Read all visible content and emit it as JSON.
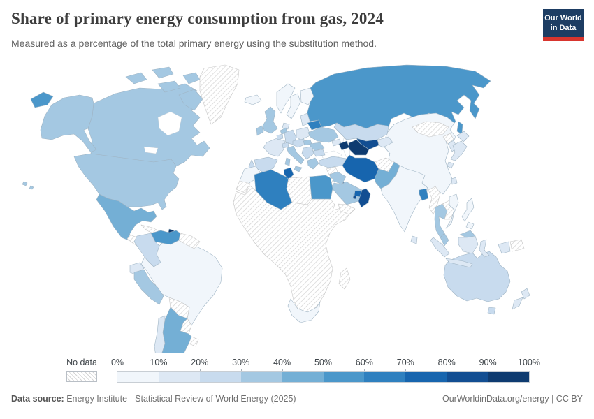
{
  "header": {
    "title": "Share of primary energy consumption from gas, 2024",
    "subtitle": "Measured as a percentage of the total primary energy using the substitution method.",
    "logo": {
      "line1": "Our World",
      "line2": "in Data",
      "bg_color": "#1d3d63",
      "accent_color": "#d8352e"
    }
  },
  "legend": {
    "no_data_label": "No data",
    "tick_labels": [
      "0%",
      "10%",
      "20%",
      "30%",
      "40%",
      "50%",
      "60%",
      "70%",
      "80%",
      "90%",
      "100%"
    ]
  },
  "footer": {
    "source_label": "Data source:",
    "source_text": " Energy Institute - Statistical Review of World Energy (2025)",
    "credit": "OurWorldinData.org/energy | CC BY"
  },
  "chart_data": {
    "type": "choropleth",
    "title": "Share of primary energy consumption from gas, 2024",
    "unit": "%",
    "bin_ranges": [
      "0-10%",
      "10-20%",
      "20-30%",
      "30-40%",
      "40-50%",
      "50-60%",
      "60-70%",
      "70-80%",
      "80-90%",
      "90-100%"
    ],
    "bin_colors": [
      "#f1f6fb",
      "#dde8f4",
      "#c8dbee",
      "#a4c8e2",
      "#74afd5",
      "#4b97ca",
      "#2f80bf",
      "#1765ae",
      "#124e92",
      "#0e3b70"
    ],
    "no_data_style": "diagonal-hatch",
    "regions": {
      "russia": {
        "name": "Russia",
        "bin": 5
      },
      "canada": {
        "name": "Canada",
        "bin": 3
      },
      "united-states": {
        "name": "United States",
        "bin": 3
      },
      "greenland": {
        "name": "Greenland",
        "bin": "no-data"
      },
      "mexico": {
        "name": "Mexico",
        "bin": 4
      },
      "central-america": {
        "name": "Central America",
        "bin": "no-data"
      },
      "cuba": {
        "name": "Cuba",
        "bin": "no-data"
      },
      "hispaniola": {
        "name": "Hispaniola",
        "bin": "no-data"
      },
      "trinidad-and-tobago": {
        "name": "Trinidad and Tobago",
        "bin": 9
      },
      "venezuela": {
        "name": "Venezuela",
        "bin": 5
      },
      "colombia": {
        "name": "Colombia",
        "bin": 2
      },
      "ecuador": {
        "name": "Ecuador",
        "bin": 1
      },
      "peru": {
        "name": "Peru",
        "bin": 3
      },
      "brazil": {
        "name": "Brazil",
        "bin": 0
      },
      "bolivia": {
        "name": "Bolivia",
        "bin": "no-data"
      },
      "paraguay": {
        "name": "Paraguay",
        "bin": "no-data"
      },
      "uruguay": {
        "name": "Uruguay",
        "bin": "no-data"
      },
      "guyanas": {
        "name": "Guyana/Suriname",
        "bin": "no-data"
      },
      "argentina": {
        "name": "Argentina",
        "bin": 4
      },
      "chile": {
        "name": "Chile",
        "bin": 1
      },
      "iceland": {
        "name": "Iceland",
        "bin": 0
      },
      "norway": {
        "name": "Norway",
        "bin": 0
      },
      "sweden": {
        "name": "Sweden",
        "bin": 0
      },
      "finland": {
        "name": "Finland",
        "bin": 0
      },
      "denmark": {
        "name": "Denmark",
        "bin": 1
      },
      "united-kingdom": {
        "name": "United Kingdom",
        "bin": 3
      },
      "ireland": {
        "name": "Ireland",
        "bin": 3
      },
      "france": {
        "name": "France",
        "bin": 1
      },
      "spain": {
        "name": "Spain",
        "bin": 2
      },
      "portugal": {
        "name": "Portugal",
        "bin": 2
      },
      "germany": {
        "name": "Germany",
        "bin": 2
      },
      "netherlands": {
        "name": "Netherlands",
        "bin": 3
      },
      "belgium": {
        "name": "Belgium",
        "bin": 2
      },
      "switzerland": {
        "name": "Switzerland",
        "bin": 2
      },
      "czechia-austria": {
        "name": "Czechia/Austria",
        "bin": 2
      },
      "poland": {
        "name": "Poland",
        "bin": 1
      },
      "baltics": {
        "name": "Baltic states",
        "bin": 1
      },
      "belarus": {
        "name": "Belarus",
        "bin": 6
      },
      "ukraine": {
        "name": "Ukraine",
        "bin": 3
      },
      "romania": {
        "name": "Romania",
        "bin": 3
      },
      "hungary": {
        "name": "Hungary",
        "bin": 3
      },
      "balkans": {
        "name": "Balkans",
        "bin": 2
      },
      "bulgaria": {
        "name": "Bulgaria",
        "bin": 2
      },
      "greece": {
        "name": "Greece",
        "bin": 3
      },
      "italy": {
        "name": "Italy",
        "bin": 3
      },
      "turkey": {
        "name": "Turkey",
        "bin": 2
      },
      "georgia": {
        "name": "Georgia",
        "bin": 1
      },
      "azerbaijan": {
        "name": "Azerbaijan",
        "bin": 9
      },
      "kazakhstan": {
        "name": "Kazakhstan",
        "bin": 2
      },
      "uzbekistan": {
        "name": "Uzbekistan",
        "bin": 8
      },
      "turkmenistan": {
        "name": "Turkmenistan",
        "bin": 9
      },
      "kyrgyzstan-tajikistan": {
        "name": "Kyrgyzstan/Tajikistan",
        "bin": 1
      },
      "syria": {
        "name": "Syria",
        "bin": "no-data"
      },
      "iraq": {
        "name": "Iraq",
        "bin": 3
      },
      "israel": {
        "name": "Israel",
        "bin": 4
      },
      "jordan": {
        "name": "Jordan",
        "bin": "no-data"
      },
      "kuwait": {
        "name": "Kuwait",
        "bin": 7
      },
      "saudi-arabia": {
        "name": "Saudi Arabia",
        "bin": 3
      },
      "qatar": {
        "name": "Qatar",
        "bin": 8
      },
      "united-arab-emirates": {
        "name": "United Arab Emirates",
        "bin": 7
      },
      "oman": {
        "name": "Oman",
        "bin": 8
      },
      "yemen": {
        "name": "Yemen",
        "bin": "no-data"
      },
      "iran": {
        "name": "Iran",
        "bin": 7
      },
      "afghanistan": {
        "name": "Afghanistan",
        "bin": "no-data"
      },
      "pakistan": {
        "name": "Pakistan",
        "bin": 4
      },
      "india": {
        "name": "India",
        "bin": 0
      },
      "sri-lanka": {
        "name": "Sri Lanka",
        "bin": 1
      },
      "bangladesh": {
        "name": "Bangladesh",
        "bin": 6
      },
      "myanmar": {
        "name": "Myanmar",
        "bin": "no-data"
      },
      "thailand": {
        "name": "Thailand",
        "bin": 3
      },
      "laos-cambodia": {
        "name": "Laos/Cambodia",
        "bin": "no-data"
      },
      "vietnam": {
        "name": "Vietnam",
        "bin": 0
      },
      "malaysia": {
        "name": "Malaysia",
        "bin": 3
      },
      "indonesia": {
        "name": "Indonesia",
        "bin": 1
      },
      "philippines": {
        "name": "Philippines",
        "bin": 0
      },
      "china": {
        "name": "China",
        "bin": 0
      },
      "mongolia": {
        "name": "Mongolia",
        "bin": "no-data"
      },
      "north-korea": {
        "name": "North Korea",
        "bin": "no-data"
      },
      "south-korea": {
        "name": "South Korea",
        "bin": 1
      },
      "japan": {
        "name": "Japan",
        "bin": 1
      },
      "taiwan": {
        "name": "Taiwan",
        "bin": 1
      },
      "papua-new-guinea": {
        "name": "Papua New Guinea",
        "bin": "no-data"
      },
      "australia": {
        "name": "Australia",
        "bin": 2
      },
      "new-zealand": {
        "name": "New Zealand",
        "bin": 1
      },
      "morocco": {
        "name": "Morocco",
        "bin": 0
      },
      "western-sahara": {
        "name": "Western Sahara",
        "bin": "no-data"
      },
      "algeria": {
        "name": "Algeria",
        "bin": 6
      },
      "tunisia": {
        "name": "Tunisia",
        "bin": 7
      },
      "libya": {
        "name": "Libya",
        "bin": "no-data"
      },
      "egypt": {
        "name": "Egypt",
        "bin": 5
      },
      "sub-saharan-africa": {
        "name": "Sub-Saharan Africa",
        "bin": "no-data"
      },
      "south-africa": {
        "name": "South Africa",
        "bin": 0
      },
      "madagascar": {
        "name": "Madagascar",
        "bin": "no-data"
      }
    }
  }
}
